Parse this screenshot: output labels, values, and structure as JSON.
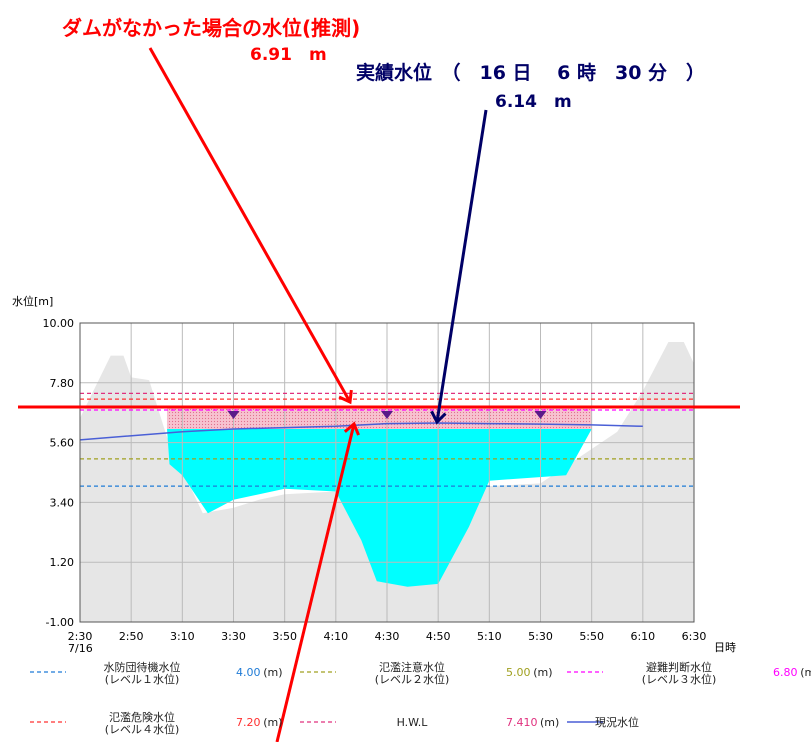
{
  "annotations": {
    "title_no_dam": "ダムがなかった場合の水位(推測)",
    "value_no_dam": "6.91　m",
    "title_actual": "実績水位　（　16 日　 6 時　30 分　）",
    "value_actual": "6.14　m"
  },
  "colors": {
    "red": "#ff0000",
    "navy": "#000066",
    "cyan": "#00ffff",
    "gray_fill": "#e6e6e6",
    "current_line": "#4a5fd6",
    "pink_band": "#f7b6c6"
  },
  "chart_data": {
    "type": "area",
    "ylabel": "水位[m]",
    "xlabel": "日時",
    "ylim": [
      -1.0,
      10.0
    ],
    "y_ticks": [
      "10.00",
      "7.80",
      "5.60",
      "3.40",
      "1.20",
      "-1.00"
    ],
    "y_tick_values": [
      10.0,
      7.8,
      5.6,
      3.4,
      1.2,
      -1.0
    ],
    "x_ticks": [
      "2:30",
      "2:50",
      "3:10",
      "3:30",
      "3:50",
      "4:10",
      "4:30",
      "4:50",
      "5:10",
      "5:30",
      "5:50",
      "6:10",
      "6:30"
    ],
    "x_sub_label": "7/16",
    "grid": true,
    "thresholds": [
      {
        "name": "水防団待機水位\n(レベル１水位)",
        "value": 4.0,
        "value_label": "4.00",
        "color": "#1f7bd6"
      },
      {
        "name": "氾濫注意水位\n(レベル２水位)",
        "value": 5.0,
        "value_label": "5.00",
        "color": "#a0a020"
      },
      {
        "name": "避難判断水位\n(レベル３水位)",
        "value": 6.8,
        "value_label": "6.80",
        "color": "#ff00ff"
      },
      {
        "name": "氾濫危険水位\n(レベル４水位)",
        "value": 7.2,
        "value_label": "7.20",
        "color": "#ff3030"
      },
      {
        "name": "H.W.L",
        "value": 7.41,
        "value_label": "7.410",
        "color": "#e0307e"
      }
    ],
    "unit_label": "(m)",
    "current_series_name": "現況水位",
    "no_dam_level": 6.91,
    "actual_level": 6.14,
    "current_water_level": [
      {
        "x": 0.0,
        "y": 5.7
      },
      {
        "x": 2.0,
        "y": 6.0
      },
      {
        "x": 3.0,
        "y": 6.1
      },
      {
        "x": 4.0,
        "y": 6.15
      },
      {
        "x": 5.0,
        "y": 6.2
      },
      {
        "x": 6.0,
        "y": 6.3
      },
      {
        "x": 7.0,
        "y": 6.32
      },
      {
        "x": 8.0,
        "y": 6.3
      },
      {
        "x": 9.0,
        "y": 6.28
      },
      {
        "x": 10.0,
        "y": 6.25
      },
      {
        "x": 11.0,
        "y": 6.2
      }
    ],
    "pink_band": {
      "x_start": 1.7,
      "x_end": 10.0,
      "y_low": 6.1,
      "y_high": 6.91
    },
    "markers_x": [
      3.0,
      6.0,
      9.0
    ],
    "gray_profile": [
      {
        "x": 0.0,
        "y": 6.5
      },
      {
        "x": 0.6,
        "y": 8.8
      },
      {
        "x": 0.85,
        "y": 8.8
      },
      {
        "x": 1.0,
        "y": 8.0
      },
      {
        "x": 1.35,
        "y": 7.9
      },
      {
        "x": 1.7,
        "y": 5.8
      },
      {
        "x": 2.4,
        "y": 3.0
      },
      {
        "x": 3.0,
        "y": 3.2
      },
      {
        "x": 3.5,
        "y": 3.5
      },
      {
        "x": 4.0,
        "y": 3.7
      },
      {
        "x": 5.0,
        "y": 3.8
      },
      {
        "x": 6.5,
        "y": 3.8
      },
      {
        "x": 8.0,
        "y": 4.0
      },
      {
        "x": 9.0,
        "y": 4.1
      },
      {
        "x": 10.5,
        "y": 6.0
      },
      {
        "x": 11.0,
        "y": 7.5
      },
      {
        "x": 11.5,
        "y": 9.3
      },
      {
        "x": 11.8,
        "y": 9.3
      },
      {
        "x": 12.0,
        "y": 8.5
      }
    ],
    "cyan_profile": [
      {
        "x": 1.7,
        "y": 6.1
      },
      {
        "x": 1.75,
        "y": 4.8
      },
      {
        "x": 2.0,
        "y": 4.4
      },
      {
        "x": 2.5,
        "y": 3.0
      },
      {
        "x": 3.0,
        "y": 3.5
      },
      {
        "x": 4.0,
        "y": 3.9
      },
      {
        "x": 5.0,
        "y": 3.8
      },
      {
        "x": 5.5,
        "y": 2.0
      },
      {
        "x": 5.8,
        "y": 0.5
      },
      {
        "x": 6.4,
        "y": 0.3
      },
      {
        "x": 7.0,
        "y": 0.4
      },
      {
        "x": 7.6,
        "y": 2.5
      },
      {
        "x": 8.0,
        "y": 4.2
      },
      {
        "x": 9.5,
        "y": 4.4
      },
      {
        "x": 10.0,
        "y": 6.1
      }
    ]
  }
}
